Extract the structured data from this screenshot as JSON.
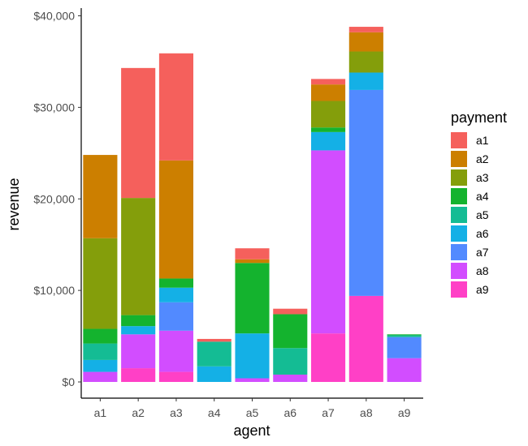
{
  "chart_data": {
    "type": "bar",
    "stacked": true,
    "categories": [
      "a1",
      "a2",
      "a3",
      "a4",
      "a5",
      "a6",
      "a7",
      "a8",
      "a9"
    ],
    "xlabel": "agent",
    "ylabel": "revenue",
    "ylim": [
      0,
      40000
    ],
    "yticks": [
      0,
      10000,
      20000,
      30000,
      40000
    ],
    "ytick_labels": [
      "$0",
      "$10,000",
      "$20,000",
      "$30,000",
      "$40,000"
    ],
    "grid": false,
    "legend": {
      "title": "payment",
      "position": "right"
    },
    "series": [
      {
        "name": "a9",
        "color": "#FF40C6",
        "values": [
          0,
          1500,
          1100,
          0,
          0,
          0,
          5300,
          9400,
          0
        ]
      },
      {
        "name": "a8",
        "color": "#D24DFF",
        "values": [
          1100,
          3700,
          4500,
          0,
          400,
          800,
          20000,
          0,
          2600
        ]
      },
      {
        "name": "a7",
        "color": "#528AFF",
        "values": [
          0,
          0,
          3100,
          0,
          0,
          0,
          0,
          22500,
          2300
        ]
      },
      {
        "name": "a6",
        "color": "#14B0E6",
        "values": [
          1300,
          900,
          1600,
          1700,
          4900,
          0,
          2000,
          1900,
          0
        ]
      },
      {
        "name": "a5",
        "color": "#14BC94",
        "values": [
          1800,
          0,
          0,
          2700,
          0,
          2900,
          0,
          0,
          200
        ]
      },
      {
        "name": "a4",
        "color": "#14B32E",
        "values": [
          1600,
          1200,
          1000,
          0,
          7700,
          3700,
          500,
          0,
          100
        ]
      },
      {
        "name": "a3",
        "color": "#849E0B",
        "values": [
          9900,
          12800,
          0,
          0,
          0,
          0,
          2900,
          2300,
          0
        ]
      },
      {
        "name": "a2",
        "color": "#CC7F00",
        "values": [
          9100,
          0,
          12900,
          0,
          400,
          0,
          1800,
          2100,
          0
        ]
      },
      {
        "name": "a1",
        "color": "#F5605C",
        "values": [
          0,
          14200,
          11700,
          300,
          1200,
          600,
          600,
          600,
          0
        ]
      }
    ],
    "legend_order": [
      "a1",
      "a2",
      "a3",
      "a4",
      "a5",
      "a6",
      "a7",
      "a8",
      "a9"
    ]
  }
}
